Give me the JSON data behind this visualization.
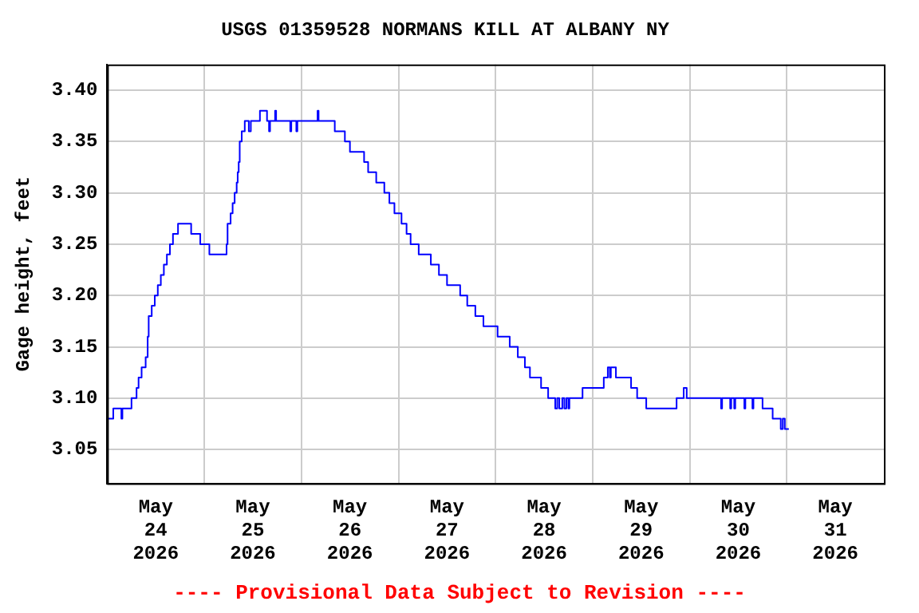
{
  "chart_data": {
    "type": "step",
    "title": "USGS 01359528 NORMANS KILL AT ALBANY NY",
    "ylabel": "Gage height, feet",
    "annotations": [
      "---- Provisional Data Subject to Revision ----"
    ],
    "xlim": [
      "2026-05-24T00:00",
      "2026-06-01T00:00"
    ],
    "xticks": [
      {
        "value": "2026-05-24T12:00",
        "label": "May\n24\n2026"
      },
      {
        "value": "2026-05-25T00:00",
        "label": null
      },
      {
        "value": "2026-05-25T12:00",
        "label": "May\n25\n2026"
      },
      {
        "value": "2026-05-26T00:00",
        "label": null
      },
      {
        "value": "2026-05-26T12:00",
        "label": "May\n26\n2026"
      },
      {
        "value": "2026-05-27T00:00",
        "label": null
      },
      {
        "value": "2026-05-27T12:00",
        "label": "May\n27\n2026"
      },
      {
        "value": "2026-05-28T00:00",
        "label": null
      },
      {
        "value": "2026-05-28T12:00",
        "label": "May\n28\n2026"
      },
      {
        "value": "2026-05-29T00:00",
        "label": null
      },
      {
        "value": "2026-05-29T12:00",
        "label": "May\n29\n2026"
      },
      {
        "value": "2026-05-30T00:00",
        "label": null
      },
      {
        "value": "2026-05-30T12:00",
        "label": "May\n30\n2026"
      },
      {
        "value": "2026-05-31T00:00",
        "label": null
      },
      {
        "value": "2026-05-31T12:00",
        "label": "May\n31\n2026"
      }
    ],
    "ylim": [
      3.017,
      3.425
    ],
    "yticks": [
      {
        "value": 3.05,
        "label": "3.05"
      },
      {
        "value": 3.1,
        "label": "3.10"
      },
      {
        "value": 3.15,
        "label": "3.15"
      },
      {
        "value": 3.2,
        "label": "3.20"
      },
      {
        "value": 3.25,
        "label": "3.25"
      },
      {
        "value": 3.3,
        "label": "3.30"
      },
      {
        "value": 3.35,
        "label": "3.35"
      },
      {
        "value": 3.4,
        "label": "3.40"
      }
    ],
    "grid": true,
    "legend": false,
    "marker": "none",
    "series": [
      {
        "color": "#0000ff",
        "x": [
          "2026-05-24T00:00",
          "2026-05-24T01:30",
          "2026-05-24T03:30",
          "2026-05-24T03:45",
          "2026-05-24T06:00",
          "2026-05-24T07:15",
          "2026-05-24T07:45",
          "2026-05-24T08:30",
          "2026-05-24T09:30",
          "2026-05-24T10:00",
          "2026-05-24T10:15",
          "2026-05-24T11:00",
          "2026-05-24T11:45",
          "2026-05-24T12:30",
          "2026-05-24T13:15",
          "2026-05-24T14:00",
          "2026-05-24T14:45",
          "2026-05-24T15:30",
          "2026-05-24T16:15",
          "2026-05-24T17:30",
          "2026-05-24T20:45",
          "2026-05-24T23:00",
          "2026-05-25T01:15",
          "2026-05-25T05:30",
          "2026-05-25T05:45",
          "2026-05-25T06:30",
          "2026-05-25T07:00",
          "2026-05-25T07:30",
          "2026-05-25T08:00",
          "2026-05-25T08:15",
          "2026-05-25T08:30",
          "2026-05-25T08:45",
          "2026-05-25T09:15",
          "2026-05-25T10:00",
          "2026-05-25T11:00",
          "2026-05-25T11:30",
          "2026-05-25T13:45",
          "2026-05-25T15:30",
          "2026-05-25T16:00",
          "2026-05-25T16:15",
          "2026-05-25T17:30",
          "2026-05-25T17:45",
          "2026-05-25T21:15",
          "2026-05-25T21:30",
          "2026-05-25T22:45",
          "2026-05-25T23:00",
          "2026-05-26T04:00",
          "2026-05-26T04:15",
          "2026-05-26T08:15",
          "2026-05-26T10:45",
          "2026-05-26T12:00",
          "2026-05-26T15:30",
          "2026-05-26T16:30",
          "2026-05-26T18:30",
          "2026-05-26T20:30",
          "2026-05-26T21:45",
          "2026-05-26T23:00",
          "2026-05-27T00:45",
          "2026-05-27T02:00",
          "2026-05-27T03:00",
          "2026-05-27T05:00",
          "2026-05-27T08:00",
          "2026-05-27T10:00",
          "2026-05-27T12:00",
          "2026-05-27T15:15",
          "2026-05-27T17:00",
          "2026-05-27T19:00",
          "2026-05-27T21:00",
          "2026-05-28T00:30",
          "2026-05-28T03:30",
          "2026-05-28T05:30",
          "2026-05-28T07:15",
          "2026-05-28T08:30",
          "2026-05-28T11:15",
          "2026-05-28T13:00",
          "2026-05-28T14:45",
          "2026-05-28T15:15",
          "2026-05-28T15:45",
          "2026-05-28T16:30",
          "2026-05-28T17:00",
          "2026-05-28T17:30",
          "2026-05-28T18:00",
          "2026-05-28T18:15",
          "2026-05-28T21:30",
          "2026-05-29T02:45",
          "2026-05-29T03:45",
          "2026-05-29T04:15",
          "2026-05-29T04:30",
          "2026-05-29T05:45",
          "2026-05-29T09:30",
          "2026-05-29T11:00",
          "2026-05-29T13:15",
          "2026-05-29T20:45",
          "2026-05-29T22:30",
          "2026-05-29T23:15",
          "2026-05-30T07:45",
          "2026-05-30T08:00",
          "2026-05-30T10:00",
          "2026-05-30T10:15",
          "2026-05-30T11:00",
          "2026-05-30T11:15",
          "2026-05-30T13:30",
          "2026-05-30T13:45",
          "2026-05-30T15:30",
          "2026-05-30T15:45",
          "2026-05-30T18:00",
          "2026-05-30T20:30",
          "2026-05-30T22:30",
          "2026-05-30T23:00",
          "2026-05-30T23:30",
          "2026-05-31T00:30"
        ],
        "values": [
          3.08,
          3.09,
          3.08,
          3.09,
          3.1,
          3.11,
          3.12,
          3.13,
          3.14,
          3.16,
          3.18,
          3.19,
          3.2,
          3.21,
          3.22,
          3.23,
          3.24,
          3.25,
          3.26,
          3.27,
          3.26,
          3.25,
          3.24,
          3.25,
          3.27,
          3.28,
          3.29,
          3.3,
          3.31,
          3.32,
          3.33,
          3.35,
          3.36,
          3.37,
          3.36,
          3.37,
          3.38,
          3.37,
          3.36,
          3.37,
          3.38,
          3.37,
          3.36,
          3.37,
          3.36,
          3.37,
          3.38,
          3.37,
          3.36,
          3.35,
          3.34,
          3.33,
          3.32,
          3.31,
          3.3,
          3.29,
          3.28,
          3.27,
          3.26,
          3.25,
          3.24,
          3.23,
          3.22,
          3.21,
          3.2,
          3.19,
          3.18,
          3.17,
          3.16,
          3.15,
          3.14,
          3.13,
          3.12,
          3.11,
          3.1,
          3.09,
          3.1,
          3.09,
          3.1,
          3.09,
          3.1,
          3.09,
          3.1,
          3.11,
          3.12,
          3.13,
          3.12,
          3.13,
          3.12,
          3.11,
          3.1,
          3.09,
          3.1,
          3.11,
          3.1,
          3.09,
          3.1,
          3.09,
          3.1,
          3.09,
          3.1,
          3.09,
          3.1,
          3.09,
          3.1,
          3.09,
          3.08,
          3.07,
          3.08,
          3.07,
          3.07
        ]
      }
    ]
  }
}
